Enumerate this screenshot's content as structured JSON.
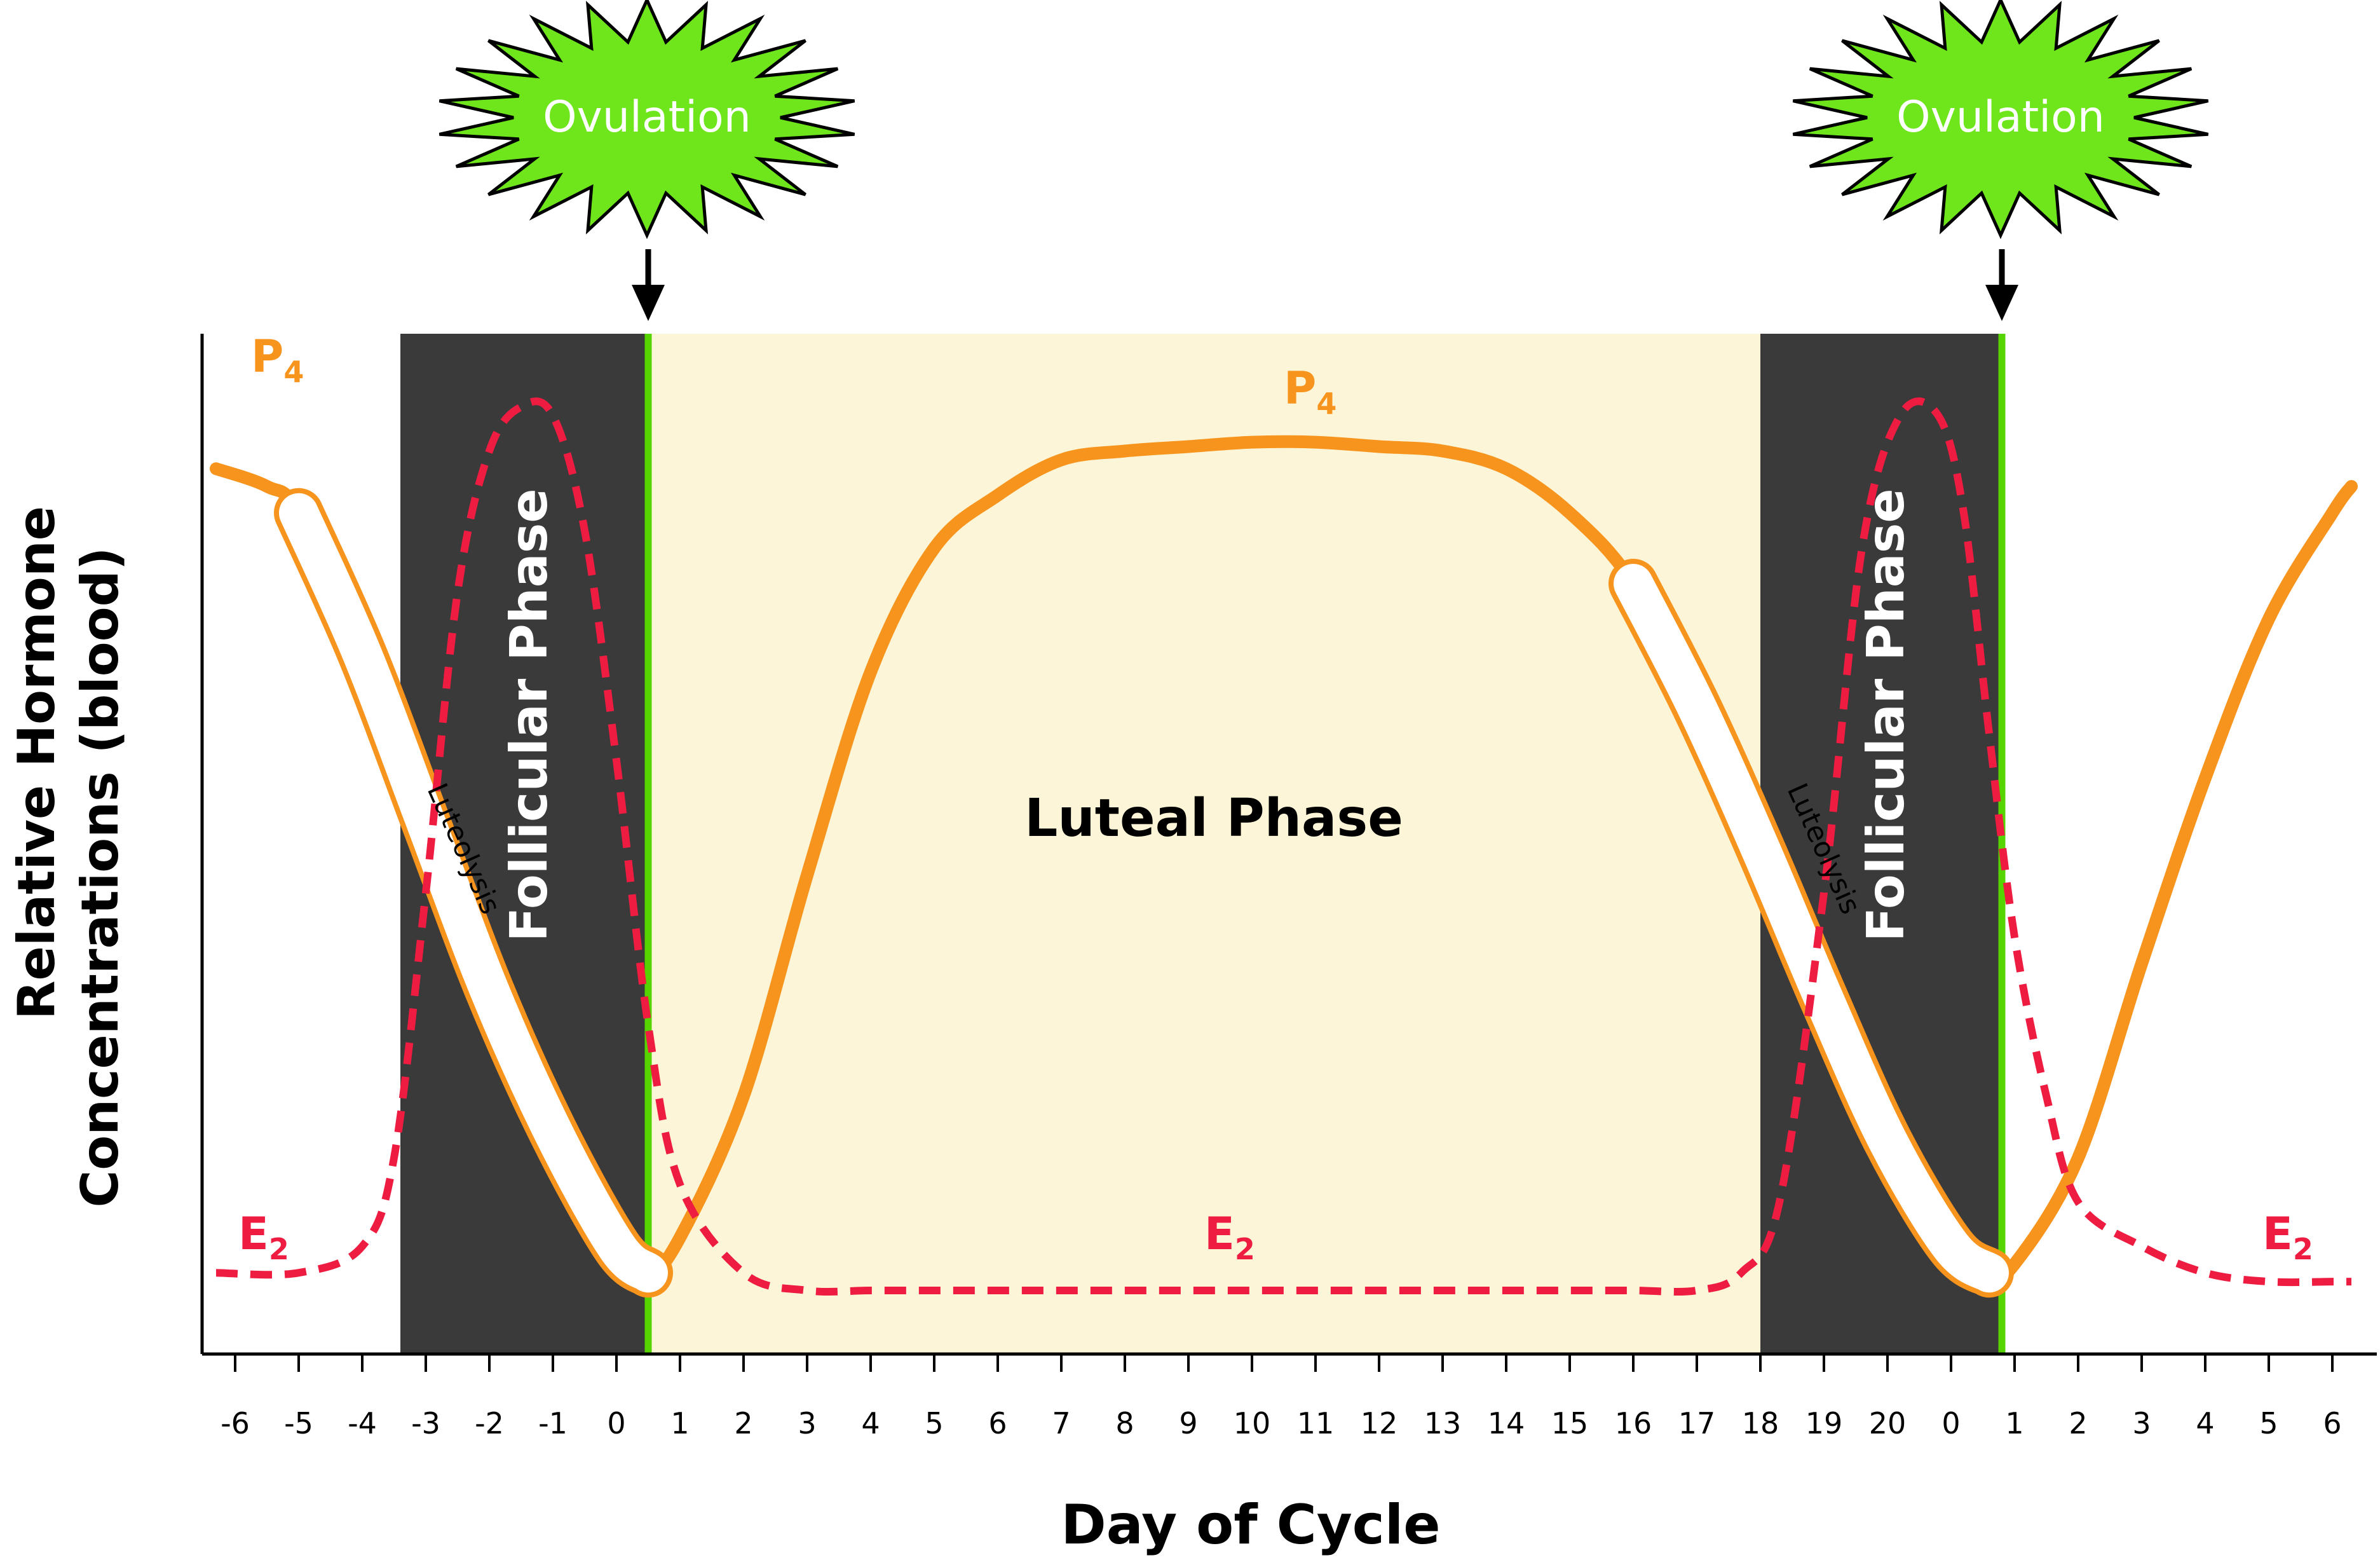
{
  "chart_data": {
    "type": "line",
    "xlabel": "Day of Cycle",
    "ylabel_line1": "Relative Hormone",
    "ylabel_line2": "Concentrations (blood)",
    "x_ticks": [
      "-6",
      "-5",
      "-4",
      "-3",
      "-2",
      "-1",
      "0",
      "1",
      "2",
      "3",
      "4",
      "5",
      "6",
      "7",
      "8",
      "9",
      "10",
      "11",
      "12",
      "13",
      "14",
      "15",
      "16",
      "17",
      "18",
      "19",
      "20",
      "0",
      "1",
      "2",
      "3",
      "4",
      "5",
      "6"
    ],
    "series": [
      {
        "name": "P4",
        "color": "#f7941d",
        "x": [
          -6.3,
          -5.5,
          -5,
          -4,
          -3,
          -2,
          -1,
          0,
          0.5,
          1,
          2,
          3,
          4,
          5,
          6,
          7,
          8,
          9,
          10,
          11,
          12,
          13,
          14,
          15,
          16,
          17,
          18,
          19,
          20,
          21,
          21.6,
          22,
          23,
          24,
          25,
          26,
          27,
          27.3
        ],
        "y": [
          0.93,
          0.91,
          0.88,
          0.72,
          0.53,
          0.34,
          0.18,
          0.05,
          0.02,
          0.06,
          0.22,
          0.47,
          0.7,
          0.84,
          0.9,
          0.94,
          0.95,
          0.955,
          0.96,
          0.96,
          0.955,
          0.95,
          0.93,
          0.88,
          0.8,
          0.66,
          0.5,
          0.33,
          0.17,
          0.05,
          0.02,
          0.03,
          0.15,
          0.37,
          0.58,
          0.76,
          0.88,
          0.91
        ]
      },
      {
        "name": "E2",
        "color": "#ed1c40",
        "x": [
          -6.3,
          -5,
          -4,
          -3.5,
          -3,
          -2.5,
          -2,
          -1.5,
          -1,
          -0.5,
          0,
          0.5,
          1,
          2,
          3,
          4,
          5,
          6,
          7,
          8,
          9,
          10,
          11,
          12,
          13,
          14,
          15,
          16,
          17,
          17.7,
          18.3,
          19,
          19.6,
          20.2,
          20.8,
          21.2,
          21.6,
          22,
          22.5,
          23,
          24,
          25,
          26,
          27,
          27.3
        ],
        "y": [
          0.02,
          0.02,
          0.05,
          0.15,
          0.45,
          0.79,
          0.95,
          1.0,
          0.99,
          0.86,
          0.6,
          0.3,
          0.12,
          0.02,
          0.0,
          0.0,
          0.0,
          0.0,
          0.0,
          0.0,
          0.0,
          0.0,
          0.0,
          0.0,
          0.0,
          0.0,
          0.0,
          0.0,
          0.0,
          0.02,
          0.1,
          0.45,
          0.84,
          0.99,
          0.99,
          0.88,
          0.63,
          0.4,
          0.22,
          0.1,
          0.05,
          0.02,
          0.01,
          0.01,
          0.01
        ]
      }
    ],
    "phases": [
      {
        "label": "Follicular Phase",
        "start": -3.4,
        "end": 0.5,
        "color": "#3a3a3a"
      },
      {
        "label": "Luteal Phase",
        "start": 0.5,
        "end": 18,
        "color": "#fdf5d7"
      },
      {
        "label": "Follicular Phase",
        "start": 18,
        "end": 21.8,
        "color": "#3a3a3a"
      }
    ],
    "ovulation_days": [
      0.5,
      21.8
    ],
    "luteolysis_ranges": [
      [
        -5,
        0.5
      ],
      [
        15.3,
        21.8
      ]
    ],
    "legend": "inline labels",
    "grid": false
  },
  "labels": {
    "ovulation": "Ovulation",
    "follicular": "Follicular Phase",
    "luteal": "Luteal Phase",
    "luteolysis": "Luteolysis",
    "p4_main": "P",
    "p4_sub": "4",
    "e2_main": "E",
    "e2_sub": "2"
  }
}
